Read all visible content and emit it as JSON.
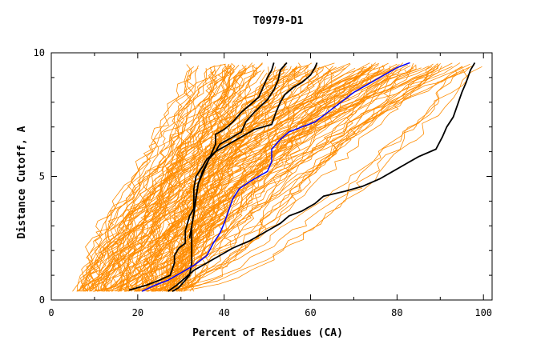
{
  "chart_data": {
    "type": "line",
    "title": "T0979-D1",
    "xlabel": "Percent of Residues (CA)",
    "ylabel": "Distance Cutoff, A",
    "xlim": [
      0,
      102
    ],
    "ylim": [
      0,
      10
    ],
    "x_ticks": [
      0,
      20,
      40,
      60,
      80,
      100
    ],
    "y_ticks": [
      0,
      5,
      10
    ],
    "x_tick_labels": [
      "0",
      "20",
      "40",
      "60",
      "80",
      "100"
    ],
    "y_tick_labels": [
      "0",
      "5",
      "10"
    ],
    "grid": false,
    "legend": "none",
    "colors": {
      "models": "#ff8c00",
      "reference": "#000000",
      "highlight": "#0000ff",
      "axes": "#000000"
    },
    "model_count": 150,
    "highlight_series": {
      "color": "#0000ff",
      "points": [
        [
          21,
          0.35
        ],
        [
          24,
          0.6
        ],
        [
          27,
          0.8
        ],
        [
          30,
          1.1
        ],
        [
          33,
          1.4
        ],
        [
          36,
          1.8
        ],
        [
          37.5,
          2.3
        ],
        [
          39,
          2.7
        ],
        [
          40,
          3.1
        ],
        [
          41,
          3.6
        ],
        [
          42,
          4.1
        ],
        [
          43.5,
          4.5
        ],
        [
          46,
          4.8
        ],
        [
          48,
          5.0
        ],
        [
          50,
          5.2
        ],
        [
          51,
          5.6
        ],
        [
          51,
          6.1
        ],
        [
          53,
          6.5
        ],
        [
          55,
          6.8
        ],
        [
          58,
          7.0
        ],
        [
          61,
          7.2
        ],
        [
          64,
          7.6
        ],
        [
          67,
          8.0
        ],
        [
          70,
          8.4
        ],
        [
          73,
          8.7
        ],
        [
          76,
          9.0
        ],
        [
          78,
          9.2
        ],
        [
          80,
          9.4
        ],
        [
          83,
          9.6
        ]
      ]
    },
    "reference_series": [
      {
        "color": "#000000",
        "points": [
          [
            18,
            0.4
          ],
          [
            22,
            0.6
          ],
          [
            25,
            0.8
          ],
          [
            27.5,
            1.0
          ],
          [
            28.5,
            1.5
          ],
          [
            28.5,
            1.8
          ],
          [
            29.5,
            2.1
          ],
          [
            31,
            2.3
          ],
          [
            31,
            2.8
          ],
          [
            31.5,
            3.1
          ],
          [
            32,
            3.4
          ],
          [
            33,
            3.7
          ],
          [
            33,
            4.5
          ],
          [
            33.5,
            5.0
          ],
          [
            35,
            5.4
          ],
          [
            36,
            5.7
          ],
          [
            38,
            6.0
          ],
          [
            39,
            6.3
          ],
          [
            42,
            6.6
          ],
          [
            44,
            6.8
          ],
          [
            45,
            7.2
          ],
          [
            47,
            7.6
          ],
          [
            50,
            8.1
          ],
          [
            51.5,
            8.5
          ],
          [
            52.5,
            8.9
          ],
          [
            53,
            9.3
          ],
          [
            54.5,
            9.6
          ]
        ]
      },
      {
        "color": "#000000",
        "points": [
          [
            28,
            0.35
          ],
          [
            29.5,
            0.5
          ],
          [
            31,
            0.8
          ],
          [
            32,
            1.0
          ],
          [
            32.5,
            1.5
          ],
          [
            32.5,
            2.2
          ],
          [
            32.5,
            3.0
          ],
          [
            33,
            3.5
          ],
          [
            33.5,
            4.2
          ],
          [
            34,
            4.7
          ],
          [
            35,
            5.1
          ],
          [
            36,
            5.5
          ],
          [
            37,
            5.9
          ],
          [
            38,
            6.3
          ],
          [
            38,
            6.7
          ],
          [
            40,
            6.9
          ],
          [
            42,
            7.2
          ],
          [
            44,
            7.6
          ],
          [
            46,
            7.9
          ],
          [
            48,
            8.2
          ],
          [
            49,
            8.6
          ],
          [
            50,
            9.0
          ],
          [
            51,
            9.3
          ],
          [
            51.5,
            9.6
          ]
        ]
      },
      {
        "color": "#000000",
        "points": [
          [
            27,
            0.35
          ],
          [
            29,
            0.6
          ],
          [
            31,
            0.9
          ],
          [
            33,
            1.2
          ],
          [
            36,
            1.5
          ],
          [
            39,
            1.8
          ],
          [
            42,
            2.1
          ],
          [
            46,
            2.4
          ],
          [
            50,
            2.8
          ],
          [
            53,
            3.1
          ],
          [
            55,
            3.4
          ],
          [
            58,
            3.6
          ],
          [
            61,
            3.9
          ],
          [
            63,
            4.2
          ],
          [
            68,
            4.4
          ],
          [
            72,
            4.6
          ],
          [
            76,
            4.9
          ],
          [
            79,
            5.2
          ],
          [
            82,
            5.5
          ],
          [
            85,
            5.8
          ],
          [
            89,
            6.1
          ],
          [
            90.5,
            6.6
          ],
          [
            91.5,
            7.0
          ],
          [
            93,
            7.4
          ],
          [
            94,
            7.9
          ],
          [
            95,
            8.4
          ],
          [
            96,
            8.8
          ],
          [
            97,
            9.3
          ],
          [
            98,
            9.6
          ]
        ]
      },
      {
        "color": "#000000",
        "points": [
          [
            32,
            2.5
          ],
          [
            32.5,
            3.0
          ],
          [
            33,
            3.5
          ],
          [
            33.5,
            4.1
          ],
          [
            34,
            4.7
          ],
          [
            35,
            5.2
          ],
          [
            36.5,
            5.7
          ],
          [
            38,
            6.0
          ],
          [
            41,
            6.3
          ],
          [
            44,
            6.6
          ],
          [
            47,
            6.9
          ],
          [
            51,
            7.1
          ],
          [
            52,
            7.6
          ],
          [
            53,
            8.0
          ],
          [
            54,
            8.3
          ],
          [
            56,
            8.6
          ],
          [
            58,
            8.8
          ],
          [
            60,
            9.1
          ],
          [
            61,
            9.4
          ],
          [
            61.5,
            9.6
          ]
        ]
      }
    ]
  }
}
